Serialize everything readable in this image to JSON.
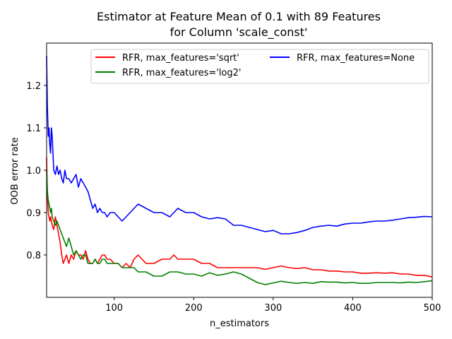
{
  "chart_data": {
    "type": "line",
    "title": [
      "Estimator at Feature Mean of 0.1 with 89 Features",
      "for Column 'scale_const'"
    ],
    "xlabel": "n_estimators",
    "ylabel": "OOB error rate",
    "xlim": [
      15,
      500
    ],
    "ylim": [
      0.7,
      1.3
    ],
    "xticks": [
      100,
      200,
      300,
      400,
      500
    ],
    "yticks": [
      0.8,
      0.9,
      1.0,
      1.1,
      1.2
    ],
    "xtick_labels": [
      "100",
      "200",
      "300",
      "400",
      "500"
    ],
    "ytick_labels": [
      "0.8",
      "0.9",
      "1.0",
      "1.1",
      "1.2"
    ],
    "grid": false,
    "legend_position": "top-right",
    "series": [
      {
        "name": "RFR, max_features='sqrt'",
        "color": "#ff0000",
        "x": [
          15,
          16,
          17,
          18,
          19,
          20,
          21,
          22,
          24,
          26,
          28,
          30,
          32,
          34,
          36,
          38,
          40,
          43,
          46,
          49,
          52,
          55,
          58,
          61,
          64,
          67,
          70,
          73,
          76,
          79,
          82,
          85,
          88,
          91,
          95,
          100,
          105,
          110,
          115,
          120,
          125,
          130,
          140,
          150,
          160,
          170,
          175,
          180,
          190,
          200,
          210,
          220,
          230,
          240,
          250,
          260,
          270,
          280,
          290,
          300,
          310,
          320,
          330,
          340,
          350,
          360,
          370,
          380,
          390,
          400,
          410,
          420,
          430,
          440,
          450,
          460,
          470,
          480,
          490,
          500
        ],
        "values": [
          1.03,
          0.94,
          0.9,
          0.89,
          0.88,
          0.89,
          0.88,
          0.87,
          0.86,
          0.89,
          0.87,
          0.85,
          0.83,
          0.8,
          0.78,
          0.79,
          0.8,
          0.78,
          0.8,
          0.79,
          0.81,
          0.8,
          0.8,
          0.79,
          0.81,
          0.79,
          0.78,
          0.78,
          0.79,
          0.78,
          0.79,
          0.8,
          0.8,
          0.79,
          0.79,
          0.78,
          0.78,
          0.77,
          0.78,
          0.77,
          0.79,
          0.8,
          0.78,
          0.78,
          0.79,
          0.79,
          0.8,
          0.79,
          0.79,
          0.79,
          0.78,
          0.78,
          0.77,
          0.77,
          0.77,
          0.77,
          0.77,
          0.77,
          0.766,
          0.77,
          0.774,
          0.77,
          0.768,
          0.77,
          0.765,
          0.765,
          0.762,
          0.762,
          0.76,
          0.76,
          0.757,
          0.757,
          0.758,
          0.757,
          0.758,
          0.755,
          0.755,
          0.752,
          0.752,
          0.748
        ]
      },
      {
        "name": "RFR, max_features='log2'",
        "color": "#008000",
        "x": [
          15,
          16,
          17,
          18,
          19,
          20,
          21,
          22,
          24,
          26,
          28,
          30,
          32,
          34,
          36,
          38,
          40,
          43,
          46,
          49,
          52,
          55,
          58,
          61,
          64,
          67,
          70,
          73,
          76,
          79,
          82,
          85,
          88,
          91,
          95,
          100,
          105,
          110,
          115,
          120,
          125,
          130,
          140,
          150,
          160,
          170,
          175,
          180,
          190,
          200,
          210,
          220,
          230,
          240,
          250,
          260,
          270,
          280,
          290,
          300,
          310,
          320,
          330,
          340,
          350,
          360,
          370,
          380,
          390,
          400,
          410,
          420,
          430,
          440,
          450,
          460,
          470,
          480,
          490,
          500
        ],
        "values": [
          1.0,
          0.95,
          0.93,
          0.92,
          0.91,
          0.9,
          0.91,
          0.89,
          0.88,
          0.87,
          0.88,
          0.87,
          0.86,
          0.85,
          0.84,
          0.83,
          0.82,
          0.84,
          0.82,
          0.8,
          0.81,
          0.8,
          0.79,
          0.8,
          0.8,
          0.78,
          0.78,
          0.78,
          0.79,
          0.78,
          0.78,
          0.79,
          0.79,
          0.78,
          0.78,
          0.78,
          0.78,
          0.77,
          0.77,
          0.77,
          0.77,
          0.76,
          0.76,
          0.75,
          0.75,
          0.76,
          0.76,
          0.76,
          0.755,
          0.755,
          0.75,
          0.758,
          0.752,
          0.755,
          0.76,
          0.755,
          0.745,
          0.735,
          0.73,
          0.734,
          0.738,
          0.735,
          0.733,
          0.735,
          0.733,
          0.737,
          0.736,
          0.736,
          0.734,
          0.735,
          0.733,
          0.733,
          0.735,
          0.735,
          0.735,
          0.734,
          0.736,
          0.735,
          0.737,
          0.739
        ]
      },
      {
        "name": "RFR, max_features=None",
        "color": "#0000ff",
        "x": [
          15,
          16,
          17,
          18,
          19,
          20,
          21,
          22,
          24,
          26,
          28,
          30,
          32,
          34,
          36,
          38,
          40,
          43,
          46,
          49,
          52,
          55,
          58,
          61,
          64,
          67,
          70,
          73,
          76,
          79,
          82,
          85,
          88,
          91,
          95,
          100,
          105,
          110,
          115,
          120,
          125,
          130,
          140,
          150,
          160,
          170,
          175,
          180,
          190,
          200,
          210,
          220,
          230,
          240,
          250,
          260,
          270,
          280,
          290,
          300,
          310,
          320,
          330,
          340,
          350,
          360,
          370,
          380,
          390,
          400,
          410,
          420,
          430,
          440,
          450,
          460,
          470,
          480,
          490,
          500
        ],
        "values": [
          1.27,
          1.15,
          1.08,
          1.1,
          1.06,
          1.04,
          1.1,
          1.08,
          1.0,
          0.99,
          1.01,
          0.99,
          1.0,
          0.98,
          0.97,
          1.0,
          0.98,
          0.98,
          0.97,
          0.98,
          0.99,
          0.96,
          0.98,
          0.97,
          0.96,
          0.95,
          0.93,
          0.91,
          0.92,
          0.9,
          0.91,
          0.9,
          0.9,
          0.89,
          0.9,
          0.9,
          0.89,
          0.88,
          0.89,
          0.9,
          0.91,
          0.92,
          0.91,
          0.9,
          0.9,
          0.89,
          0.9,
          0.91,
          0.9,
          0.9,
          0.89,
          0.885,
          0.888,
          0.885,
          0.87,
          0.87,
          0.865,
          0.86,
          0.855,
          0.858,
          0.85,
          0.85,
          0.853,
          0.858,
          0.865,
          0.868,
          0.87,
          0.868,
          0.873,
          0.875,
          0.875,
          0.878,
          0.88,
          0.88,
          0.882,
          0.885,
          0.888,
          0.889,
          0.891,
          0.89
        ]
      }
    ]
  }
}
